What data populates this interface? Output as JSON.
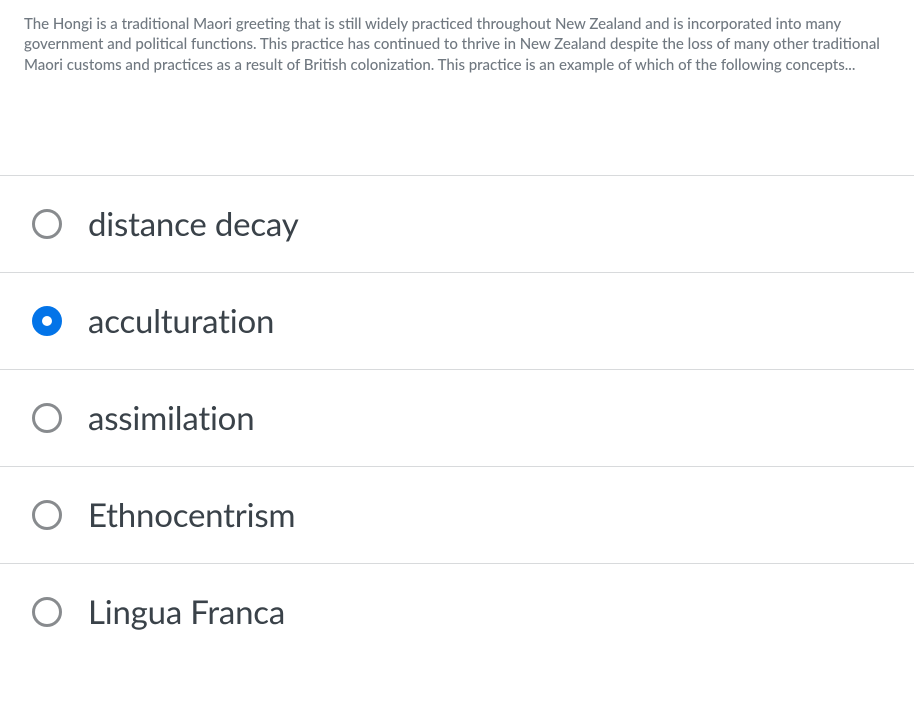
{
  "question": {
    "text": "The Hongi is a traditional Maori greeting that is still widely practiced throughout New Zealand and is incorporated into many government and political functions. This practice has continued to thrive in New Zealand despite the loss of many other traditional Maori customs and practices as a result of British colonization. This practice is an example of which of the following concepts..."
  },
  "options": [
    {
      "label": "distance decay",
      "selected": false
    },
    {
      "label": "acculturation",
      "selected": true
    },
    {
      "label": "assimilation",
      "selected": false
    },
    {
      "label": "Ethnocentrism",
      "selected": false
    },
    {
      "label": "Lingua Franca",
      "selected": false
    }
  ],
  "colors": {
    "question_text": "#707880",
    "option_text": "#3a4249",
    "border": "#d8dadc",
    "radio_unselected": "#888b8e",
    "radio_selected": "#0374e8",
    "background": "#ffffff"
  }
}
